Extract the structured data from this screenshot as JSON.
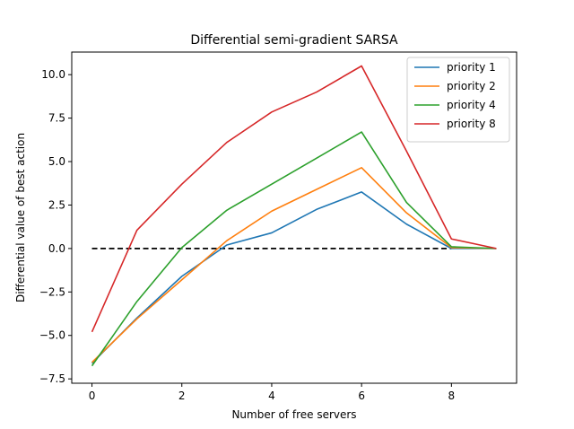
{
  "chart_data": {
    "type": "line",
    "title": "Differential semi-gradient SARSA",
    "xlabel": "Number of free servers",
    "ylabel": "Differential value of best action",
    "xlim": [
      -0.45,
      9.45
    ],
    "ylim": [
      -7.75,
      11.3
    ],
    "xticks": [
      0,
      2,
      4,
      6,
      8
    ],
    "yticks": [
      -7.5,
      -5.0,
      -2.5,
      0.0,
      2.5,
      5.0,
      7.5,
      10.0
    ],
    "ytick_labels": [
      "−7.5",
      "−5.0",
      "−2.5",
      "0.0",
      "2.5",
      "5.0",
      "7.5",
      "10.0"
    ],
    "x": [
      0,
      1,
      2,
      3,
      4,
      5,
      6,
      7,
      8,
      9
    ],
    "series": [
      {
        "name": "priority 1",
        "color": "#1f77b4",
        "values": [
          -6.6,
          -4.0,
          -1.6,
          0.2,
          0.9,
          2.25,
          3.25,
          1.4,
          0.0,
          0.0
        ]
      },
      {
        "name": "priority 2",
        "color": "#ff7f0e",
        "values": [
          -6.55,
          -4.05,
          -1.8,
          0.45,
          2.15,
          3.4,
          4.65,
          2.05,
          0.05,
          0.0
        ]
      },
      {
        "name": "priority 4",
        "color": "#2ca02c",
        "values": [
          -6.75,
          -3.05,
          0.05,
          2.2,
          3.7,
          5.2,
          6.7,
          2.65,
          0.1,
          0.0
        ]
      },
      {
        "name": "priority 8",
        "color": "#d62728",
        "values": [
          -4.8,
          1.05,
          3.7,
          6.1,
          7.85,
          9.0,
          10.5,
          5.6,
          0.55,
          0.0
        ]
      }
    ],
    "reference_line": {
      "y": 0.0,
      "x_range": [
        0,
        8
      ],
      "style": "dashed",
      "color": "#000000"
    },
    "legend": "upper-right",
    "grid": false
  }
}
